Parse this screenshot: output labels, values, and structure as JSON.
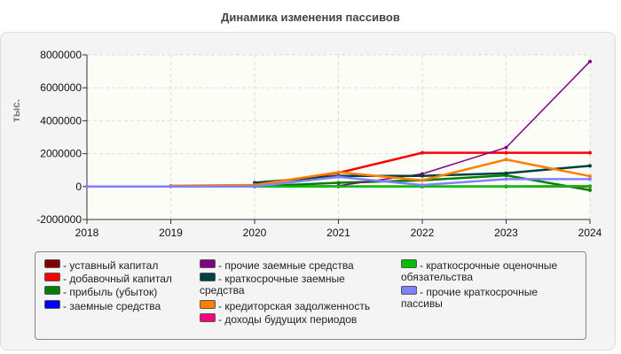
{
  "chart_data": {
    "type": "line",
    "title": "Динамика изменения пассивов",
    "ylabel": "тыс.",
    "xlabel": "",
    "x": [
      2018,
      2019,
      2020,
      2021,
      2022,
      2023,
      2024
    ],
    "xlim": [
      2018,
      2024
    ],
    "ylim": [
      -2000000,
      8000000
    ],
    "yticks": [
      -2000000,
      0,
      2000000,
      4000000,
      6000000,
      8000000
    ],
    "grid": true,
    "legend_position": "bottom",
    "series": [
      {
        "name": "уставный капитал",
        "color": "#800000",
        "values": [
          null,
          null,
          10000,
          10000,
          10000,
          10000,
          10000
        ]
      },
      {
        "name": "добавочный капитал",
        "color": "#ff0000",
        "values": [
          null,
          null,
          100000,
          830000,
          2050000,
          2050000,
          2050000
        ]
      },
      {
        "name": "прибыль (убыток)",
        "color": "#008000",
        "values": [
          null,
          null,
          0,
          230000,
          380000,
          680000,
          -220000
        ]
      },
      {
        "name": "заемные средства",
        "color": "#0000ff",
        "values": [
          null,
          null,
          0,
          0,
          0,
          0,
          0
        ]
      },
      {
        "name": "прочие заемные средства",
        "color": "#800080",
        "values": [
          null,
          null,
          0,
          50000,
          770000,
          2370000,
          7600000
        ]
      },
      {
        "name": "краткосрочные заемные средства",
        "color": "#004040",
        "values": [
          null,
          null,
          230000,
          650000,
          650000,
          810000,
          1260000
        ]
      },
      {
        "name": "кредиторская задолженность",
        "color": "#ff8000",
        "values": [
          null,
          50000,
          100000,
          870000,
          380000,
          1640000,
          630000
        ]
      },
      {
        "name": "доходы будущих периодов",
        "color": "#ff0080",
        "values": [
          null,
          null,
          0,
          0,
          0,
          0,
          0
        ]
      },
      {
        "name": "краткосрочные оценочные обязательства",
        "color": "#00c000",
        "values": [
          null,
          null,
          0,
          0,
          0,
          0,
          30000
        ]
      },
      {
        "name": "прочие краткосрочные пассивы",
        "color": "#8080ff",
        "values": [
          0,
          0,
          0,
          590000,
          90000,
          450000,
          450000
        ]
      }
    ]
  }
}
